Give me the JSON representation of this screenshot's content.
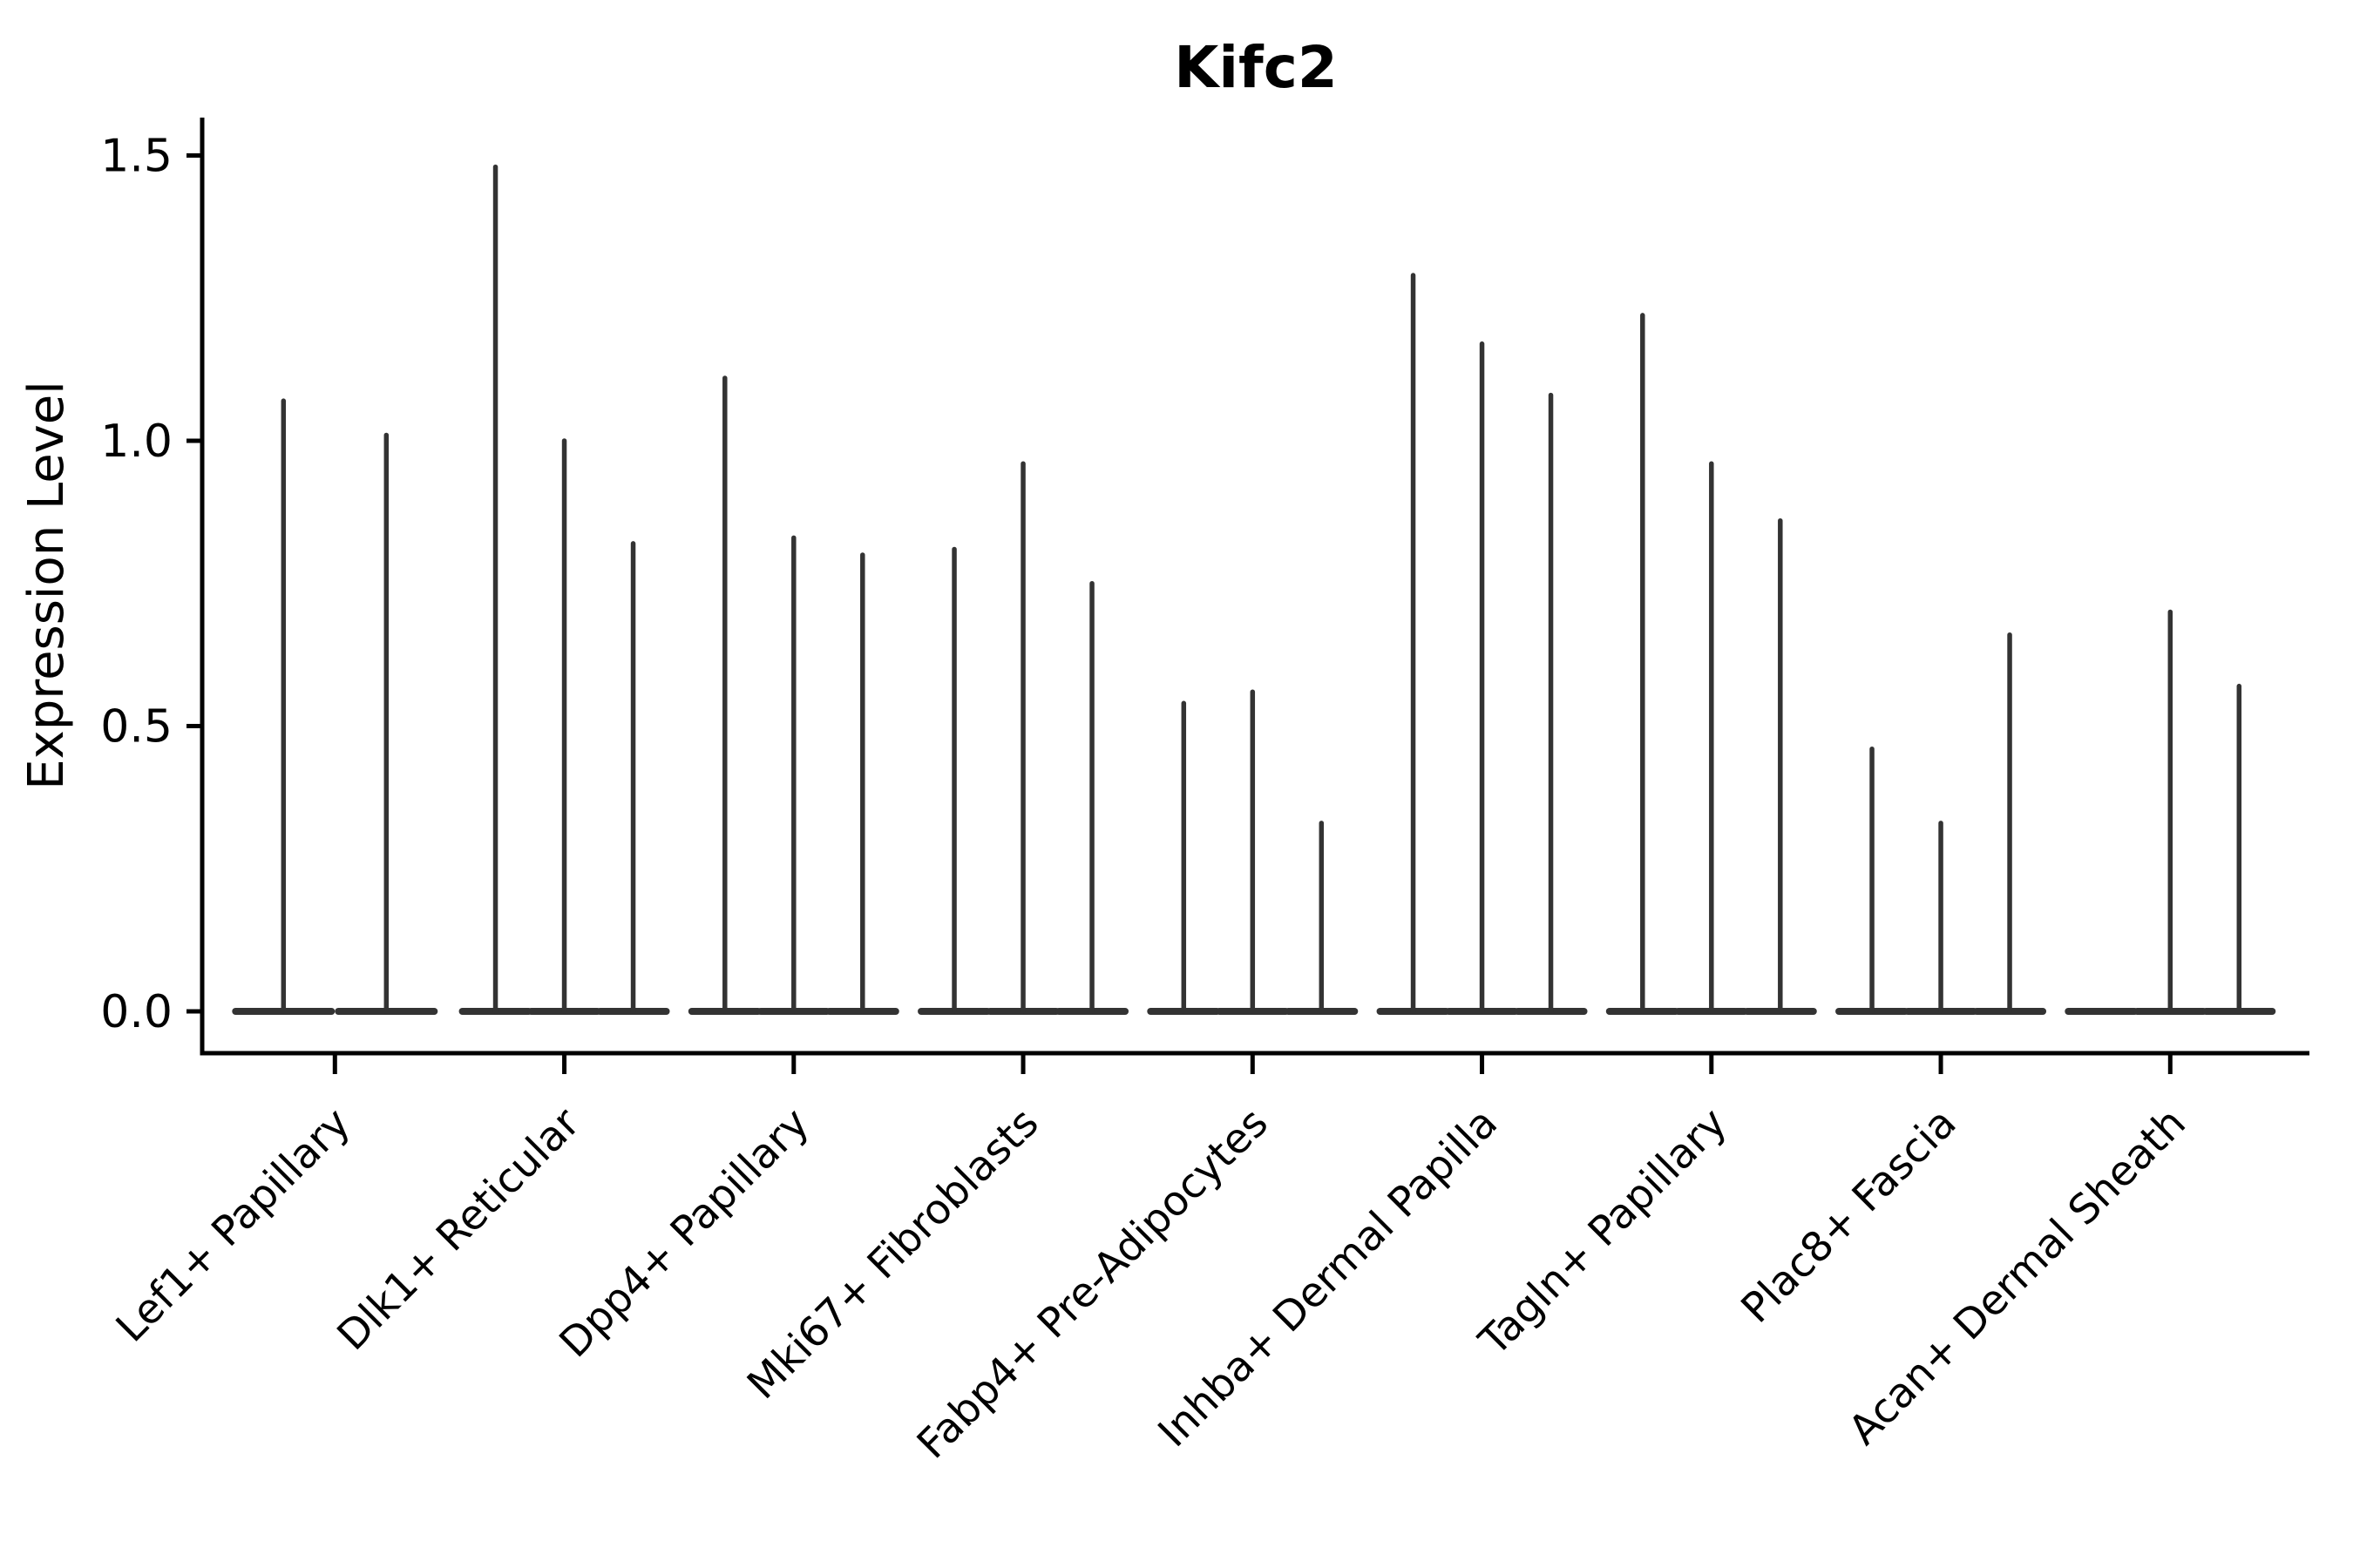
{
  "chart_data": {
    "type": "violin",
    "title": "Kifc2",
    "ylabel": "Expression Level",
    "xlabel": "",
    "yticks": [
      0.0,
      0.5,
      1.0,
      1.5
    ],
    "ytick_labels": [
      "0.0",
      "0.5",
      "1.0",
      "1.5"
    ],
    "ylim": [
      -0.073,
      1.6
    ],
    "grid": false,
    "legend": "none",
    "violin_color": "#333333",
    "axis_color": "#000000",
    "background_color": "#ffffff",
    "categories": [
      "Lef1+ Papillary",
      "Dlk1+ Reticular",
      "Dpp4+ Papillary",
      "Mki67+ Fibroblasts",
      "Fabp4+ Pre-Adipocytes",
      "Inhba+ Dermal Papilla",
      "Tagln+ Papillary",
      "Plac8+ Fascia",
      "Acan+ Dermal Sheath"
    ],
    "groups": [
      {
        "label": "Lef1+ Papillary",
        "violin_peaks": [
          1.07,
          1.01
        ]
      },
      {
        "label": "Dlk1+ Reticular",
        "violin_peaks": [
          1.48,
          1.0,
          0.82
        ]
      },
      {
        "label": "Dpp4+ Papillary",
        "violin_peaks": [
          1.11,
          0.83,
          0.8
        ]
      },
      {
        "label": "Mki67+ Fibroblasts",
        "violin_peaks": [
          0.81,
          0.96,
          0.75
        ]
      },
      {
        "label": "Fabp4+ Pre-Adipocytes",
        "violin_peaks": [
          0.54,
          0.56,
          0.33
        ]
      },
      {
        "label": "Inhba+ Dermal Papilla",
        "violin_peaks": [
          1.29,
          1.17,
          1.08
        ]
      },
      {
        "label": "Tagln+ Papillary",
        "violin_peaks": [
          1.22,
          0.96,
          0.86
        ]
      },
      {
        "label": "Plac8+ Fascia",
        "violin_peaks": [
          0.46,
          0.33,
          0.66
        ]
      },
      {
        "label": "Acan+ Dermal Sheath",
        "violin_peaks": [
          0.0,
          0.7,
          0.57
        ]
      }
    ],
    "note": "Violins are needle-thin: nearly all mass at 0 with a thin spike up to the peak value; peak 0.0 means a flat violin (base only)."
  }
}
